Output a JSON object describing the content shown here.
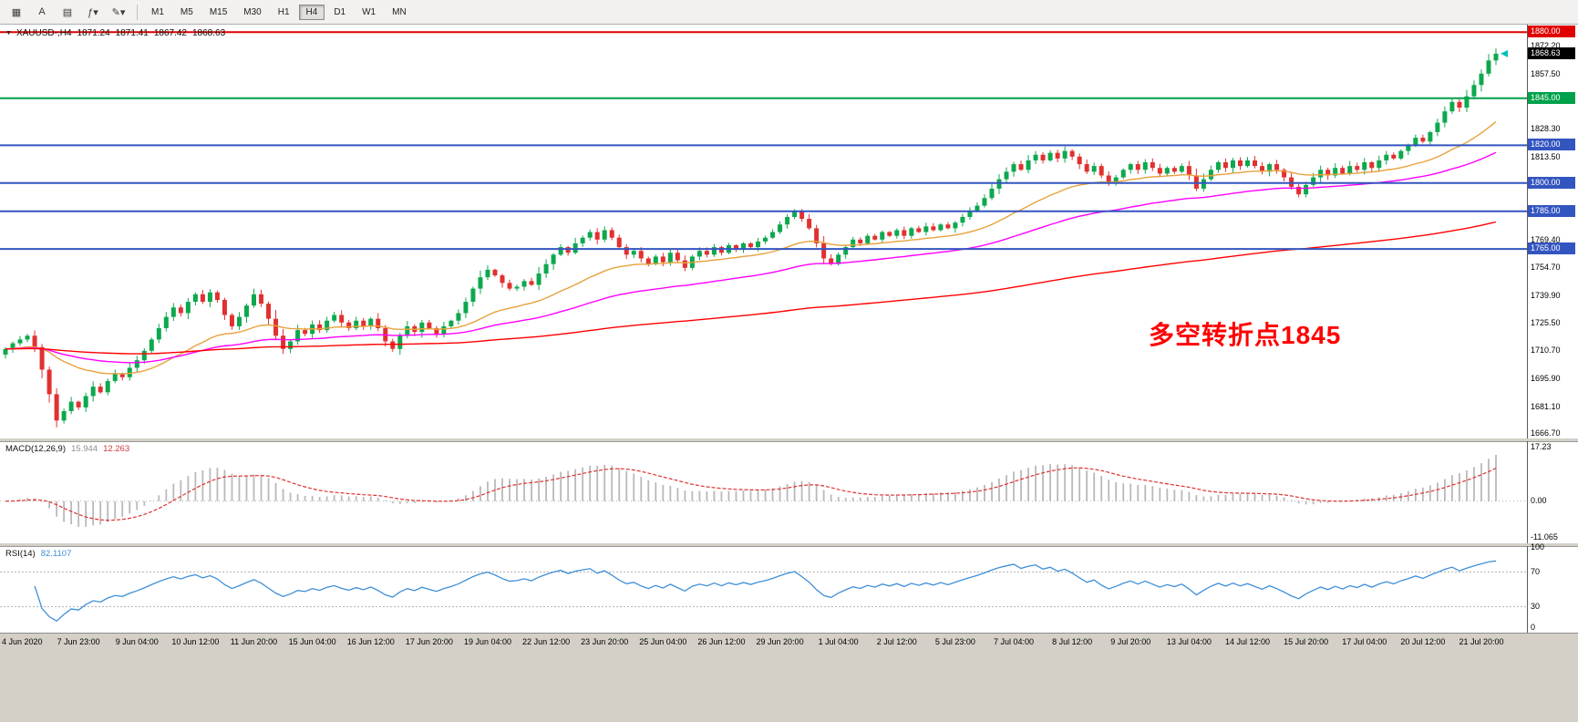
{
  "toolbar": {
    "icons": [
      {
        "name": "chart-menu-icon",
        "glyph": "▦"
      },
      {
        "name": "text-tool-icon",
        "glyph": "A"
      },
      {
        "name": "template-icon",
        "glyph": "▤"
      },
      {
        "name": "indicators-dropdown-icon",
        "glyph": "ƒ▾"
      },
      {
        "name": "draw-tools-dropdown-icon",
        "glyph": "✎▾"
      }
    ],
    "timeframes": [
      {
        "label": "M1",
        "active": false
      },
      {
        "label": "M5",
        "active": false
      },
      {
        "label": "M15",
        "active": false
      },
      {
        "label": "M30",
        "active": false
      },
      {
        "label": "H1",
        "active": false
      },
      {
        "label": "H4",
        "active": true
      },
      {
        "label": "D1",
        "active": false
      },
      {
        "label": "W1",
        "active": false
      },
      {
        "label": "MN",
        "active": false
      }
    ]
  },
  "chart": {
    "header": {
      "collapse_icon": "▼",
      "symbol": "XAUUSD-,H4",
      "open": "1871.24",
      "high": "1871.41",
      "low": "1867.42",
      "close": "1868.63"
    },
    "annotation": {
      "text": "多空转折点1845",
      "color": "#FF0000"
    },
    "current_price": "1868.63",
    "price_axis": {
      "ticks": [
        "1872.20",
        "1857.50",
        "1843.10",
        "1828.30",
        "1813.50",
        "1769.40",
        "1754.70",
        "1739.90",
        "1725.50",
        "1710.70",
        "1695.90",
        "1681.10",
        "1666.70"
      ],
      "highlighted": [
        {
          "value": "1880.00",
          "color": "#e00000"
        },
        {
          "value": "1868.63",
          "color": "#000000"
        },
        {
          "value": "1845.00",
          "color": "#00a14b"
        },
        {
          "value": "1820.00",
          "color": "#3355c0"
        },
        {
          "value": "1800.00",
          "color": "#3355c0"
        },
        {
          "value": "1785.00",
          "color": "#3355c0"
        },
        {
          "value": "1765.00",
          "color": "#3355c0"
        }
      ]
    }
  },
  "macd": {
    "label": "MACD(12,26,9)",
    "value_main": "15.944",
    "value_signal": "12.263",
    "axis": [
      "17.23",
      "0.00",
      "-11.065"
    ]
  },
  "rsi": {
    "label": "RSI(14)",
    "value": "82.1107",
    "axis": [
      "100",
      "70",
      "30",
      "0"
    ]
  },
  "time_axis": {
    "labels": [
      "4 Jun 2020",
      "7 Jun 23:00",
      "9 Jun 04:00",
      "10 Jun 12:00",
      "11 Jun 20:00",
      "15 Jun 04:00",
      "16 Jun 12:00",
      "17 Jun 20:00",
      "19 Jun 04:00",
      "22 Jun 12:00",
      "23 Jun 20:00",
      "25 Jun 04:00",
      "26 Jun 12:00",
      "29 Jun 20:00",
      "1 Jul 04:00",
      "2 Jul 12:00",
      "5 Jul 23:00",
      "7 Jul 04:00",
      "8 Jul 12:00",
      "9 Jul 20:00",
      "13 Jul 04:00",
      "14 Jul 12:00",
      "15 Jul 20:00",
      "17 Jul 04:00",
      "20 Jul 12:00",
      "21 Jul 20:00"
    ]
  },
  "chart_data": {
    "type": "candlestick",
    "symbol": "XAUUSD",
    "period": "H4",
    "price_range": [
      1664.5,
      1884.5
    ],
    "up_color": "#0da84e",
    "down_color": "#e13030",
    "first_label_index": 2,
    "label_every": 8,
    "closes": [
      1712,
      1715,
      1717,
      1719,
      1713,
      1701,
      1688,
      1674,
      1679,
      1684,
      1681,
      1687,
      1692,
      1689,
      1695,
      1699,
      1697,
      1702,
      1706,
      1711,
      1717,
      1723,
      1729,
      1734,
      1731,
      1737,
      1741,
      1737,
      1742,
      1738,
      1730,
      1724,
      1729,
      1735,
      1741,
      1736,
      1728,
      1719,
      1712,
      1716,
      1722,
      1720,
      1725,
      1722,
      1727,
      1730,
      1726,
      1723,
      1727,
      1724,
      1728,
      1723,
      1716,
      1712,
      1719,
      1724,
      1721,
      1726,
      1723,
      1720,
      1724,
      1727,
      1731,
      1737,
      1744,
      1750,
      1754,
      1751,
      1747,
      1744,
      1745,
      1748,
      1746,
      1752,
      1757,
      1762,
      1766,
      1763,
      1768,
      1771,
      1774,
      1770,
      1775,
      1771,
      1766,
      1762,
      1764,
      1760,
      1757,
      1761,
      1758,
      1763,
      1759,
      1755,
      1761,
      1764,
      1762,
      1766,
      1763,
      1767,
      1765,
      1768,
      1766,
      1769,
      1771,
      1774,
      1778,
      1782,
      1785,
      1781,
      1776,
      1768,
      1760,
      1757,
      1762,
      1766,
      1770,
      1768,
      1772,
      1770,
      1774,
      1772,
      1775,
      1772,
      1776,
      1774,
      1777,
      1775,
      1778,
      1776,
      1779,
      1782,
      1785,
      1788,
      1792,
      1797,
      1802,
      1806,
      1810,
      1807,
      1812,
      1815,
      1812,
      1816,
      1813,
      1817,
      1814,
      1810,
      1806,
      1809,
      1804,
      1800,
      1803,
      1807,
      1810,
      1807,
      1811,
      1808,
      1805,
      1808,
      1806,
      1809,
      1804,
      1797,
      1802,
      1807,
      1811,
      1808,
      1812,
      1809,
      1812,
      1809,
      1806,
      1810,
      1807,
      1803,
      1798,
      1794,
      1799,
      1803,
      1807,
      1804,
      1808,
      1805,
      1809,
      1807,
      1811,
      1808,
      1812,
      1815,
      1813,
      1817,
      1820,
      1824,
      1822,
      1827,
      1832,
      1838,
      1843,
      1840,
      1846,
      1852,
      1858,
      1865,
      1868.63
    ],
    "hlines": [
      {
        "price": 1880,
        "color": "#e00000"
      },
      {
        "price": 1845,
        "color": "#00a14b"
      },
      {
        "price": 1820,
        "color": "#3355c0"
      },
      {
        "price": 1800,
        "color": "#3355c0"
      },
      {
        "price": 1785,
        "color": "#3355c0"
      },
      {
        "price": 1765,
        "color": "#3355c0"
      }
    ],
    "moving_averages": [
      {
        "period": 25,
        "color": "#e8a13c",
        "type": "ema"
      },
      {
        "period": 60,
        "color": "#ff00ff",
        "type": "ema"
      },
      {
        "period": 200,
        "color": "#ff0000",
        "type": "ema"
      }
    ],
    "macd": {
      "fast": 12,
      "slow": 26,
      "signal": 9,
      "hist_color": "#b9b9b9",
      "signal_color": "#e03030"
    },
    "rsi": {
      "period": 14,
      "levels": [
        70,
        30
      ],
      "color": "#3e8fd8"
    }
  }
}
